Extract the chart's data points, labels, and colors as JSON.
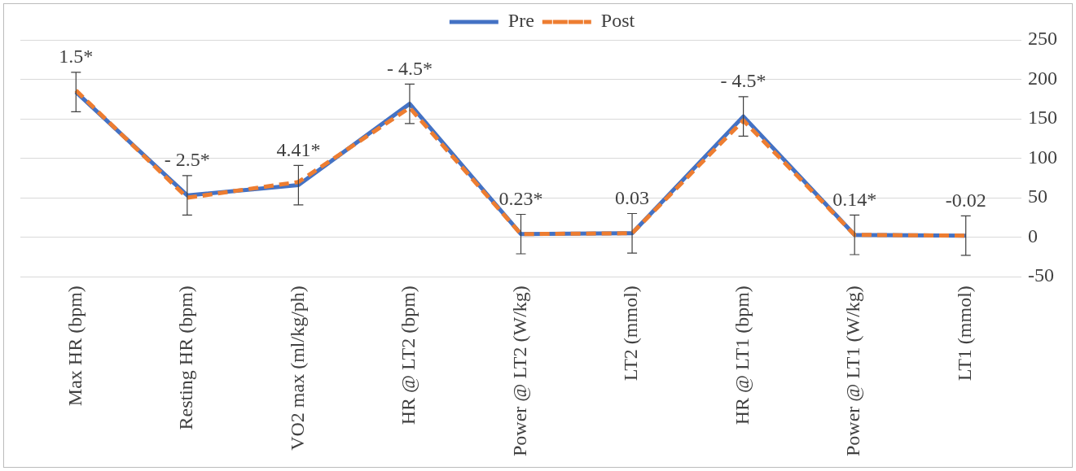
{
  "chart_data": {
    "type": "line",
    "categories": [
      "Max HR (bpm)",
      "Resting HR (bpm)",
      "VO2 max (ml/kg/ph)",
      "HR @ LT2 (bpm)",
      "Power @ LT2 (W/kg)",
      "LT2 (mmol)",
      "HR @ LT1 (bpm)",
      "Power @ LT1 (W/kg)",
      "LT1 (mmol)"
    ],
    "series": [
      {
        "name": "Pre",
        "color": "#4472c4",
        "line_style": "solid",
        "values": [
          184,
          53,
          66,
          169,
          4,
          5,
          153,
          3,
          2
        ],
        "errors": [
          25,
          25,
          25,
          25,
          25,
          25,
          25,
          25,
          25
        ]
      },
      {
        "name": "Post",
        "color": "#ed7d31",
        "line_style": "dashed",
        "values": [
          186,
          50,
          70,
          164,
          4,
          5,
          148,
          3,
          2
        ]
      }
    ],
    "ylim": [
      -50,
      250
    ],
    "yticks": [
      -50,
      0,
      50,
      100,
      150,
      200,
      250
    ],
    "grid": "y",
    "legend": "top",
    "marker": "none",
    "annotations": [
      "1.5*",
      "- 2.5*",
      "4.41*",
      "- 4.5*",
      "0.23*",
      "0.03",
      "- 4.5*",
      "0.14*",
      "-0.02"
    ]
  }
}
